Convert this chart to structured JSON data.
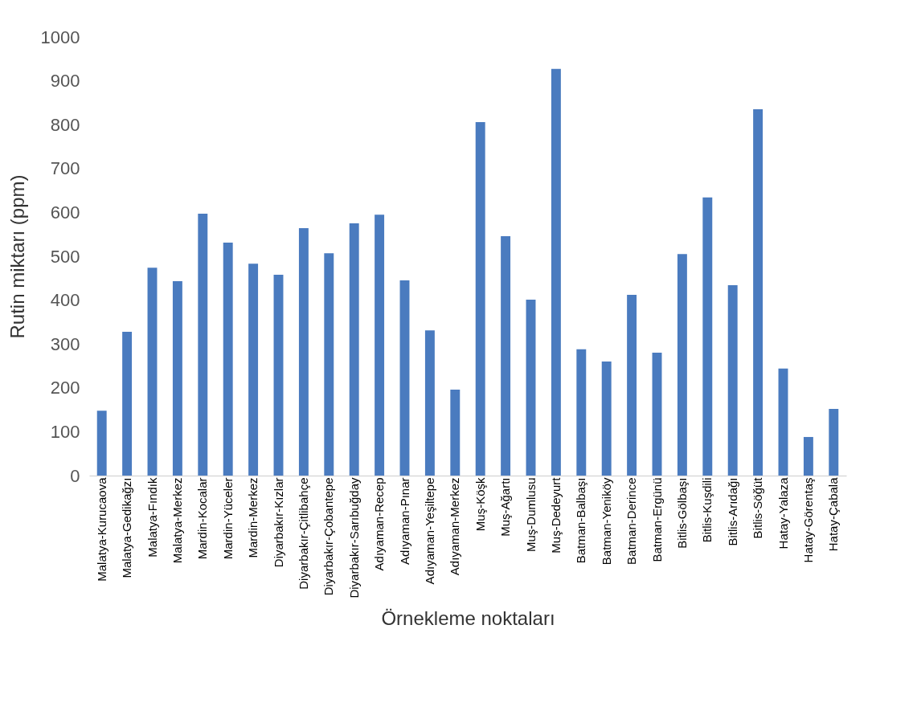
{
  "chart_data": {
    "type": "bar",
    "xlabel": "Örnekleme noktaları",
    "ylabel": "Rutin miktarı (ppm)",
    "categories": [
      "Malatya-Kurucaova",
      "Malatya-Gedikağzı",
      "Malatya-Fındık",
      "Malatya-Merkez",
      "Mardin-Kocalar",
      "Mardin-Yüceler",
      "Mardin-Merkez",
      "Diyarbakır-Kızlar",
      "Diyarbakır-Çitlibahçe",
      "Diyarbakır-Çobantepe",
      "Diyarbakır-Sarıbuğday",
      "Adıyaman-Recep",
      "Adıyaman-Pınar",
      "Adıyaman-Yeşiltepe",
      "Adıyaman-Merkez",
      "Muş-Köşk",
      "Muş-Ağartı",
      "Muş-Dumlusu",
      "Muş-Dedeyurt",
      "Batman-Balbaşı",
      "Batman-Yeniköy",
      "Batman-Derince",
      "Batman-Ergünü",
      "Bitlis-Gölbaşı",
      "Bitlis-Kuşdili",
      "Bitlis-Arıdağı",
      "Bitlis-Söğüt",
      "Hatay-Yalaza",
      "Hatay-Görentaş",
      "Hatay-Çabala"
    ],
    "values": [
      148,
      328,
      474,
      443,
      597,
      531,
      483,
      458,
      564,
      507,
      575,
      595,
      445,
      331,
      196,
      806,
      546,
      401,
      927,
      288,
      260,
      412,
      280,
      505,
      634,
      434,
      835,
      244,
      88,
      152
    ],
    "color": "#4a7bbf",
    "ylim": [
      0,
      1000
    ],
    "yticks": [
      0,
      100,
      200,
      300,
      400,
      500,
      600,
      700,
      800,
      900,
      1000
    ],
    "grid": false
  }
}
